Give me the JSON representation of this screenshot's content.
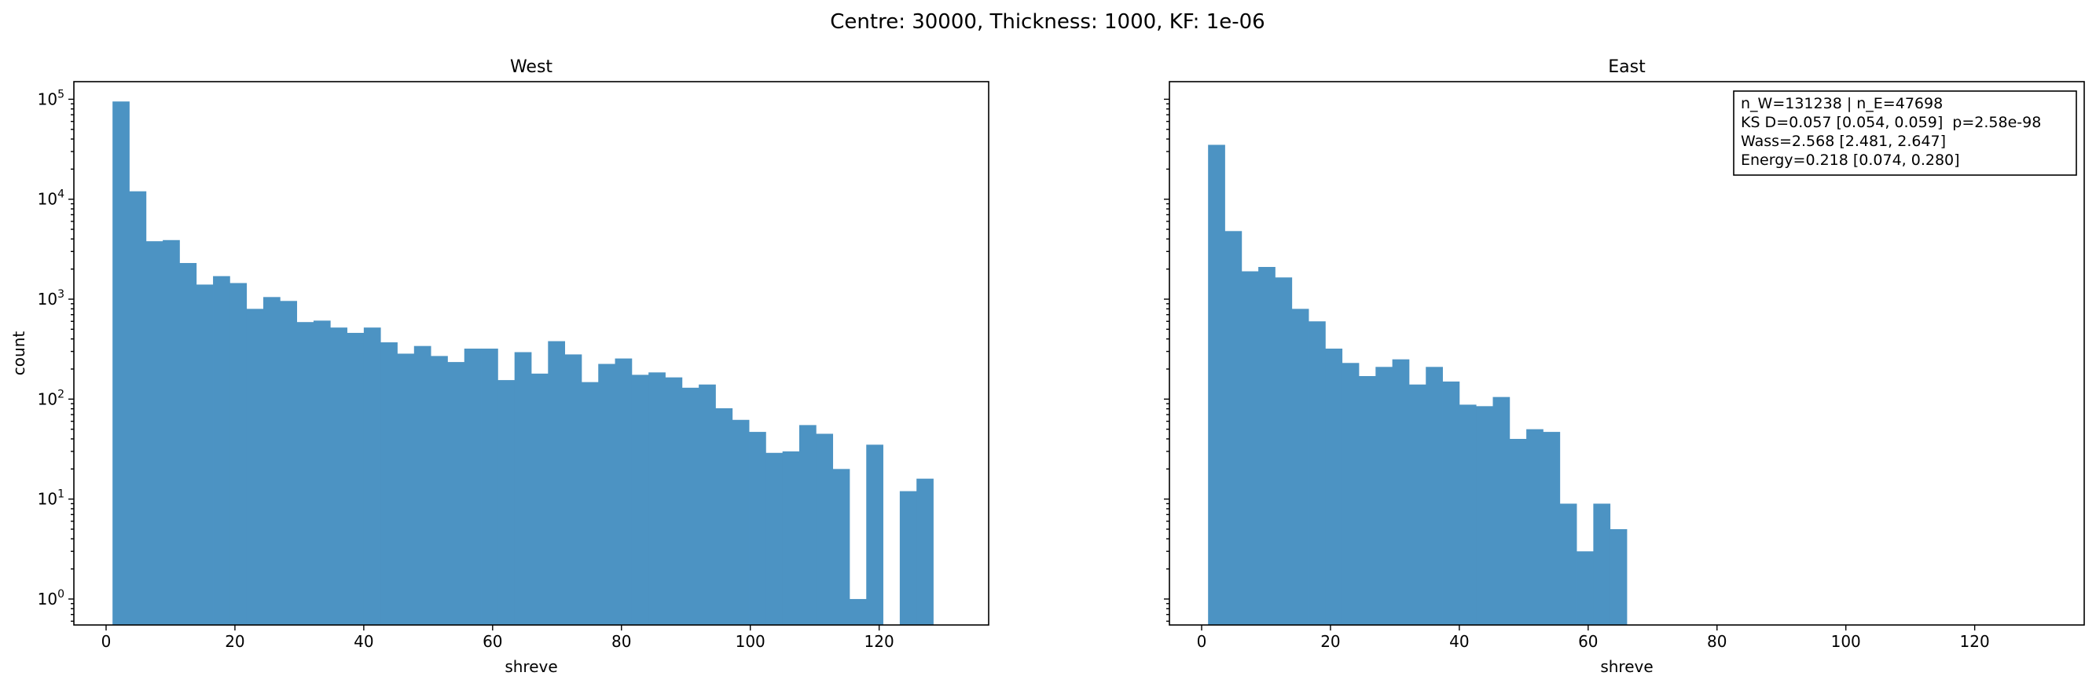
{
  "figure_title": "Centre: 30000, Thickness: 1000, KF: 1e-06",
  "colors": {
    "bar": "#4c93c3"
  },
  "chart_data": [
    {
      "type": "bar",
      "title": "West",
      "xlabel": "shreve",
      "ylabel": "count",
      "xlim": [
        -5,
        137
      ],
      "ylim": [
        0.55,
        150000
      ],
      "yscale": "log",
      "grid": false,
      "x_ticks": [
        0,
        20,
        40,
        60,
        80,
        100,
        120
      ],
      "y_ticks": [
        {
          "value": 1,
          "base": "10",
          "exp": "0"
        },
        {
          "value": 10,
          "base": "10",
          "exp": "1"
        },
        {
          "value": 100,
          "base": "10",
          "exp": "2"
        },
        {
          "value": 1000,
          "base": "10",
          "exp": "3"
        },
        {
          "value": 10000,
          "base": "10",
          "exp": "4"
        },
        {
          "value": 100000,
          "base": "10",
          "exp": "5"
        }
      ],
      "bin_start": 1,
      "bin_width": 2.6,
      "values": [
        95000,
        12000,
        3800,
        3900,
        2300,
        1400,
        1700,
        1450,
        800,
        1050,
        960,
        590,
        610,
        520,
        460,
        520,
        370,
        285,
        340,
        270,
        235,
        320,
        320,
        155,
        295,
        180,
        380,
        280,
        148,
        225,
        255,
        175,
        185,
        165,
        130,
        140,
        81,
        62,
        47,
        29,
        30,
        55,
        45,
        20,
        1,
        35,
        0,
        12,
        16
      ],
      "annotation": null
    },
    {
      "type": "bar",
      "title": "East",
      "xlabel": "shreve",
      "ylabel": "",
      "xlim": [
        -5,
        137
      ],
      "ylim": [
        0.55,
        150000
      ],
      "yscale": "log",
      "grid": false,
      "x_ticks": [
        0,
        20,
        40,
        60,
        80,
        100,
        120
      ],
      "y_ticks": [
        1,
        10,
        100,
        1000,
        10000,
        100000
      ],
      "bin_start": 1,
      "bin_width": 2.6,
      "values": [
        35000,
        4800,
        1900,
        2100,
        1650,
        800,
        600,
        320,
        230,
        170,
        210,
        250,
        140,
        210,
        150,
        88,
        85,
        105,
        40,
        50,
        47,
        9,
        3,
        9,
        5
      ],
      "annotation": {
        "lines": [
          "n_W=131238 | n_E=47698",
          "KS D=0.057 [0.054, 0.059]  p=2.58e-98",
          "Wass=2.568 [2.481, 2.647]",
          "Energy=0.218 [0.074, 0.280]"
        ]
      }
    }
  ]
}
